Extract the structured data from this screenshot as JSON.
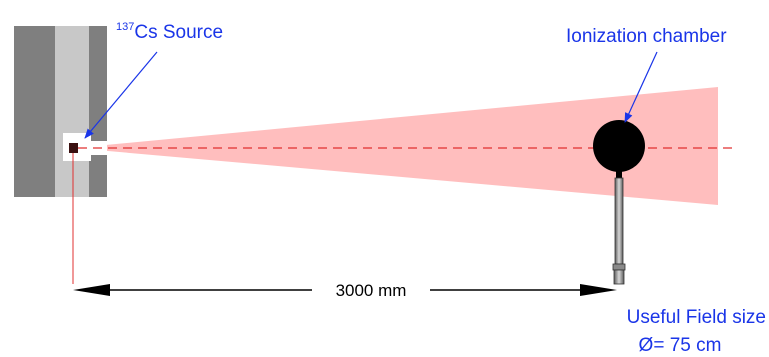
{
  "source": {
    "isotope_mass": "137",
    "label": "Cs Source"
  },
  "detector": {
    "label": "Ionization chamber"
  },
  "distance": {
    "label": "3000 mm"
  },
  "field": {
    "line1": "Useful Field size",
    "line2": "Ø= 75 cm"
  },
  "colors": {
    "label_text": "#1a35e8",
    "beam_fill": "#ffb3b3",
    "beam_axis": "#e03030",
    "shield_outer": "#7f7f7f",
    "shield_inner": "#c8c8c8",
    "chamber": "#000000"
  }
}
